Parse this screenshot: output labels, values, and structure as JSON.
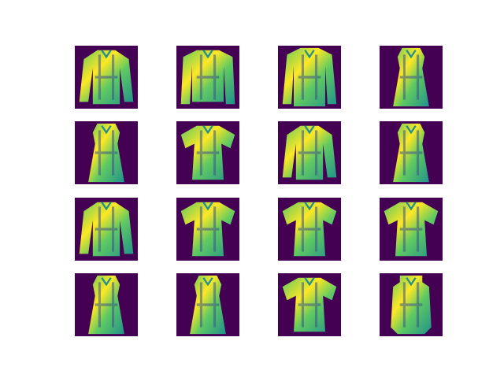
{
  "figure": {
    "background": "#ffffff",
    "grid": {
      "rows": 4,
      "cols": 4
    },
    "colormap": [
      "#440154",
      "#3b528b",
      "#21918c",
      "#5ec962",
      "#fde725"
    ],
    "images": [
      {
        "kind": "long-sleeve-shirt"
      },
      {
        "kind": "sweater"
      },
      {
        "kind": "coat"
      },
      {
        "kind": "dress"
      },
      {
        "kind": "dress"
      },
      {
        "kind": "t-shirt"
      },
      {
        "kind": "long-sleeve-shirt"
      },
      {
        "kind": "dress"
      },
      {
        "kind": "long-sleeve-shirt"
      },
      {
        "kind": "t-shirt"
      },
      {
        "kind": "t-shirt"
      },
      {
        "kind": "t-shirt"
      },
      {
        "kind": "dress"
      },
      {
        "kind": "dress"
      },
      {
        "kind": "t-shirt"
      },
      {
        "kind": "bag"
      }
    ]
  }
}
